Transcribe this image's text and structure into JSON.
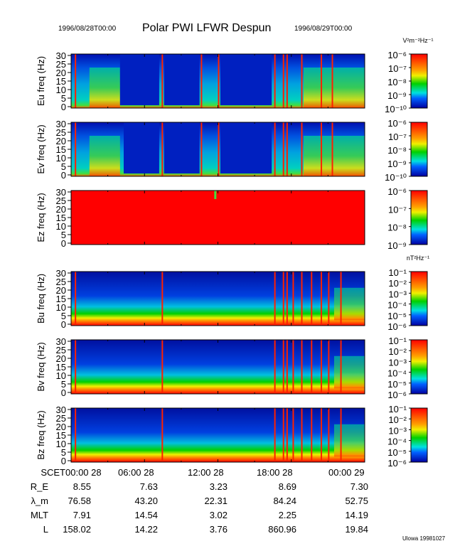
{
  "header": {
    "start": "1996/08/28T00:00",
    "title": "Polar PWI LFWR Despun",
    "end": "1996/08/29T00:00"
  },
  "chart_data": {
    "type": "heatmap",
    "title": "Polar PWI LFWR Despun",
    "xlim_hours": [
      0,
      24
    ],
    "panels": [
      {
        "ylabel": "Eu freq (Hz)",
        "ylim": [
          0,
          30
        ],
        "yticks": [
          "0",
          "5",
          "10",
          "15",
          "20",
          "25",
          "30"
        ],
        "cbar_unit": "V²m⁻²Hz⁻¹",
        "cbar_ticks": [
          "10⁻⁶",
          "10⁻⁷",
          "10⁻⁸",
          "10⁻⁹",
          "10⁻¹⁰"
        ],
        "kind": "E",
        "stripes_hours": [
          0.3,
          7.4,
          10.6,
          12.0,
          16.6,
          17.3,
          17.6,
          18.8,
          20.4,
          21.3
        ],
        "quiet_hours": [
          [
            4.0,
            7.2
          ],
          [
            7.6,
            10.5
          ],
          [
            12.2,
            16.4
          ]
        ]
      },
      {
        "ylabel": "Ev freq (Hz)",
        "ylim": [
          0,
          30
        ],
        "yticks": [
          "0",
          "5",
          "10",
          "15",
          "20",
          "25",
          "30"
        ],
        "cbar_unit": "",
        "cbar_ticks": [
          "10⁻⁶",
          "10⁻⁷",
          "10⁻⁸",
          "10⁻⁹",
          "10⁻¹⁰"
        ],
        "kind": "E",
        "stripes_hours": [
          0.3,
          7.4,
          10.6,
          12.0,
          16.6,
          17.3,
          17.6,
          18.8,
          20.4,
          21.3
        ],
        "quiet_hours": [
          [
            4.3,
            7.2
          ],
          [
            7.6,
            10.5
          ],
          [
            12.2,
            16.4
          ]
        ]
      },
      {
        "ylabel": "Ez freq (Hz)",
        "ylim": [
          0,
          30
        ],
        "yticks": [
          "0",
          "5",
          "10",
          "15",
          "20",
          "25",
          "30"
        ],
        "cbar_unit": "",
        "cbar_ticks": [
          "10⁻⁶",
          "10⁻⁷",
          "10⁻⁸",
          "10⁻⁹"
        ],
        "kind": "Z",
        "stripes_hours": [],
        "quiet_hours": []
      },
      {
        "ylabel": "Bu freq (Hz)",
        "ylim": [
          0,
          30
        ],
        "yticks": [
          "0",
          "5",
          "10",
          "15",
          "20",
          "25",
          "30"
        ],
        "cbar_unit": "nT²Hz⁻¹",
        "cbar_ticks": [
          "10⁻¹",
          "10⁻²",
          "10⁻³",
          "10⁻⁴",
          "10⁻⁵",
          "10⁻⁶"
        ],
        "kind": "B",
        "stripes_hours": [
          0.3,
          7.4,
          16.6,
          17.3,
          17.6,
          18.1,
          18.8,
          19.6,
          20.4,
          21.0,
          22.0
        ],
        "quiet_hours": []
      },
      {
        "ylabel": "Bv freq (Hz)",
        "ylim": [
          0,
          30
        ],
        "yticks": [
          "0",
          "5",
          "10",
          "15",
          "20",
          "25",
          "30"
        ],
        "cbar_unit": "",
        "cbar_ticks": [
          "10⁻¹",
          "10⁻²",
          "10⁻³",
          "10⁻⁴",
          "10⁻⁵",
          "10⁻⁶"
        ],
        "kind": "B",
        "stripes_hours": [
          0.3,
          7.4,
          16.6,
          17.3,
          17.6,
          18.1,
          18.8,
          19.6,
          20.4,
          21.0,
          22.0
        ],
        "quiet_hours": []
      },
      {
        "ylabel": "Bz freq (Hz)",
        "ylim": [
          0,
          30
        ],
        "yticks": [
          "0",
          "5",
          "10",
          "15",
          "20",
          "25",
          "30"
        ],
        "cbar_unit": "",
        "cbar_ticks": [
          "10⁻¹",
          "10⁻²",
          "10⁻³",
          "10⁻⁴",
          "10⁻⁵",
          "10⁻⁶"
        ],
        "kind": "B",
        "stripes_hours": [
          0.3,
          7.4,
          16.6,
          17.3,
          17.6,
          18.1,
          18.8,
          19.6,
          20.4,
          21.0,
          22.0
        ],
        "quiet_hours": []
      }
    ]
  },
  "ephemeris": {
    "rows": [
      {
        "label": "SCET",
        "values": [
          "00:00 28",
          "06:00 28",
          "12:00 28",
          "18:00 28",
          "00:00 29"
        ]
      },
      {
        "label": "R_E",
        "values": [
          "8.55",
          "7.63",
          "3.23",
          "8.69",
          "7.30"
        ]
      },
      {
        "label": "λ_m",
        "values": [
          "76.58",
          "43.20",
          "22.31",
          "84.24",
          "52.75"
        ]
      },
      {
        "label": "MLT",
        "values": [
          "7.91",
          "14.54",
          "3.02",
          "2.25",
          "14.19"
        ]
      },
      {
        "label": "L",
        "values": [
          "158.02",
          "14.22",
          "3.76",
          "860.96",
          "19.84"
        ]
      }
    ]
  },
  "footer": {
    "credit": "Ulowa 19981027"
  },
  "colors": {
    "blue": "#0000a0",
    "cyan": "#00e0e0",
    "green": "#00d000",
    "yellow": "#f0f000",
    "red": "#ff0000"
  }
}
